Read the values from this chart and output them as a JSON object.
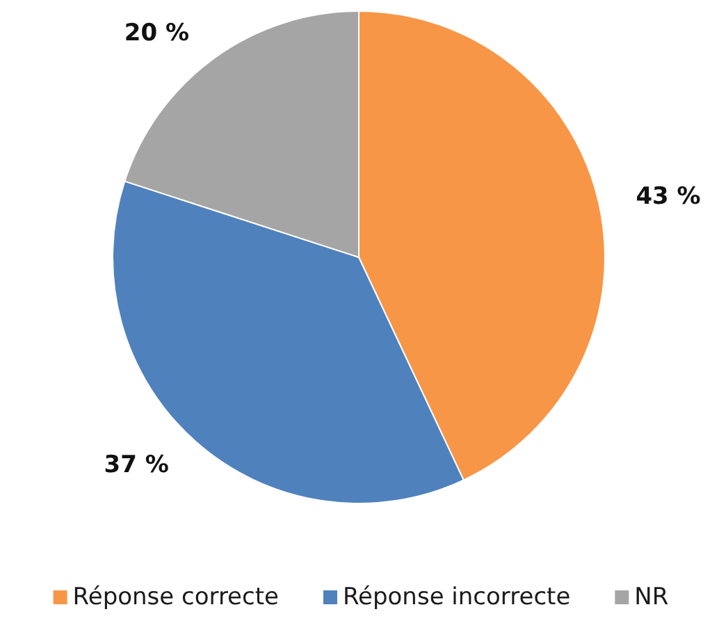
{
  "chart_data": {
    "type": "pie",
    "categories": [
      "Réponse correcte",
      "Réponse incorrecte",
      "NR"
    ],
    "values": [
      43,
      37,
      20
    ],
    "colors": [
      "#f79646",
      "#4f81bd",
      "#a5a5a5"
    ],
    "value_labels": [
      "43 %",
      "37 %",
      "20 %"
    ],
    "legend": "bottom"
  }
}
